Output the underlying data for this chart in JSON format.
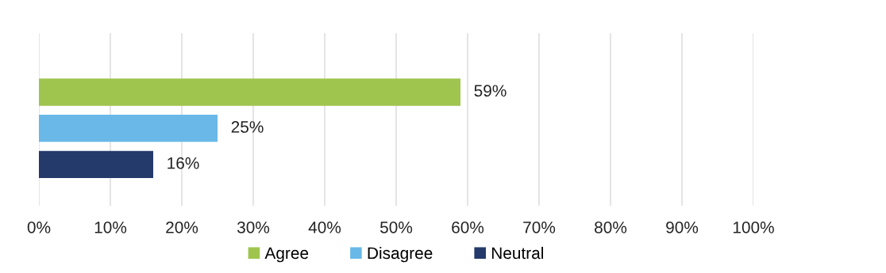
{
  "chart_data": {
    "type": "bar",
    "orientation": "horizontal",
    "categories": [
      null
    ],
    "series": [
      {
        "name": "Agree",
        "color": "#9fc54f",
        "values": [
          59
        ],
        "value_labels": [
          "59%"
        ]
      },
      {
        "name": "Disagree",
        "color": "#69b8e8",
        "values": [
          25
        ],
        "value_labels": [
          "25%"
        ]
      },
      {
        "name": "Neutral",
        "color": "#243a6b",
        "values": [
          16
        ],
        "value_labels": [
          "16%"
        ]
      }
    ],
    "xlim": [
      0,
      100
    ],
    "xticks": [
      {
        "value": 0,
        "label": "0%"
      },
      {
        "value": 10,
        "label": "10%"
      },
      {
        "value": 20,
        "label": "20%"
      },
      {
        "value": 30,
        "label": "30%"
      },
      {
        "value": 40,
        "label": "40%"
      },
      {
        "value": 50,
        "label": "50%"
      },
      {
        "value": 60,
        "label": "60%"
      },
      {
        "value": 70,
        "label": "70%"
      },
      {
        "value": 80,
        "label": "80%"
      },
      {
        "value": 90,
        "label": "90%"
      },
      {
        "value": 100,
        "label": "100%"
      }
    ],
    "grid": "x",
    "legend": "bottom"
  }
}
